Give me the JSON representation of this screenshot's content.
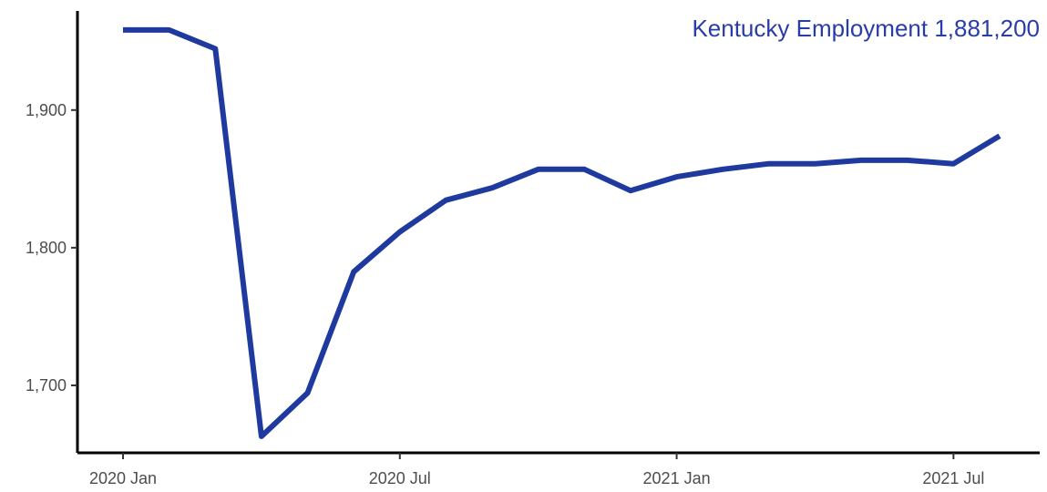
{
  "chart_data": {
    "type": "line",
    "title": "",
    "xlabel": "",
    "ylabel": "",
    "annotation": "Kentucky Employment 1,881,200",
    "x": [
      "2020-01",
      "2020-02",
      "2020-03",
      "2020-04",
      "2020-05",
      "2020-06",
      "2020-07",
      "2020-08",
      "2020-09",
      "2020-10",
      "2020-11",
      "2020-12",
      "2021-01",
      "2021-02",
      "2021-03",
      "2021-04",
      "2021-05",
      "2021-06",
      "2021-07",
      "2021-08"
    ],
    "series": [
      {
        "values": [
          1958.2,
          1958.2,
          1944.5,
          1663.0,
          1694.5,
          1782.5,
          1811.5,
          1834.5,
          1843.5,
          1857.0,
          1857.0,
          1841.5,
          1851.5,
          1857.0,
          1861.0,
          1861.0,
          1863.5,
          1863.5,
          1861.0,
          1881.2
        ]
      }
    ],
    "xticks": [
      {
        "value": "2020-01",
        "label": "2020 Jan"
      },
      {
        "value": "2020-07",
        "label": "2020 Jul"
      },
      {
        "value": "2021-01",
        "label": "2021 Jan"
      },
      {
        "value": "2021-07",
        "label": "2021 Jul"
      }
    ],
    "yticks": [
      {
        "value": 1700,
        "label": "1,700"
      },
      {
        "value": 1800,
        "label": "1,800"
      },
      {
        "value": 1900,
        "label": "1,900"
      }
    ],
    "ylim": [
      1651,
      1972
    ],
    "grid": false,
    "legend": "none",
    "colors": {
      "series": "#1f3a9e",
      "annotation": "#2a3da6",
      "axis": "#000000",
      "tick_label": "#4d4d4d"
    }
  }
}
